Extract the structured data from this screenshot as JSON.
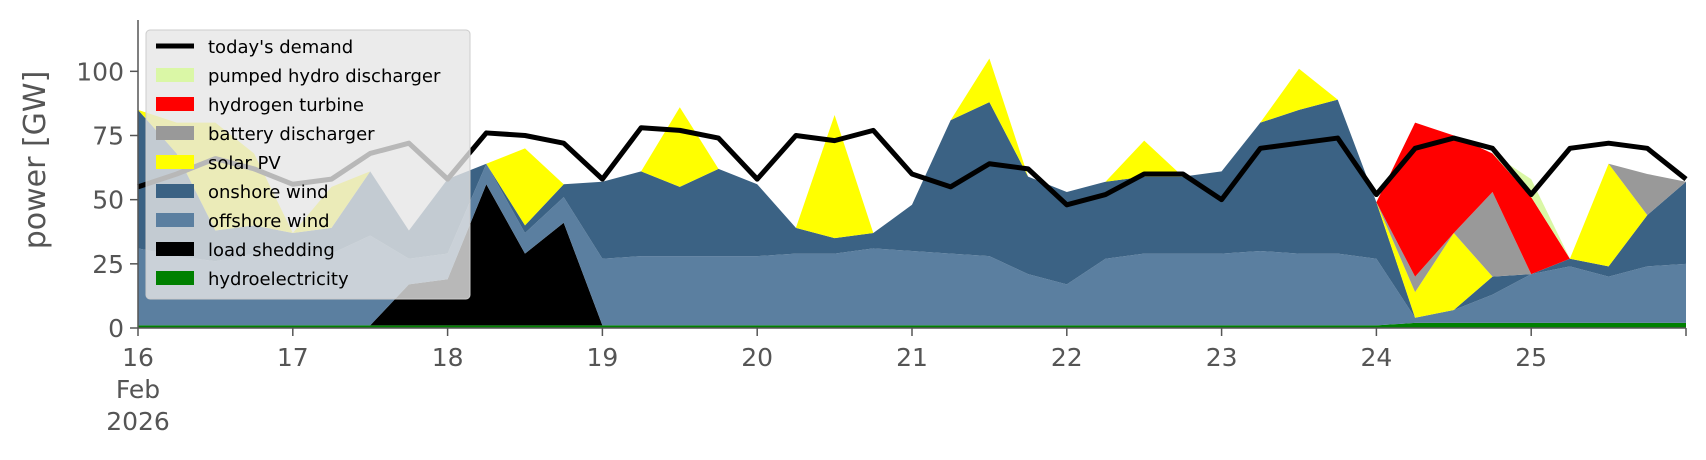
{
  "chart_data": {
    "type": "area",
    "ylabel": "power [GW]",
    "ylim": [
      0,
      120
    ],
    "xlim": [
      "2026-02-16T00:00",
      "2026-02-26T00:00"
    ],
    "yticks": [
      0,
      25,
      50,
      75,
      100
    ],
    "x_ticks": [
      {
        "label": "16",
        "sublabel": "Feb",
        "year": "2026"
      },
      {
        "label": "17"
      },
      {
        "label": "18"
      },
      {
        "label": "19"
      },
      {
        "label": "20"
      },
      {
        "label": "21"
      },
      {
        "label": "22"
      },
      {
        "label": "23"
      },
      {
        "label": "24"
      },
      {
        "label": "25"
      }
    ],
    "grid": false,
    "legend_position": "top-left",
    "stack_order": [
      "hydroelectricity",
      "load shedding",
      "offshore wind",
      "onshore wind",
      "solar PV",
      "battery discharger",
      "hydrogen turbine",
      "pumped hydro discharger"
    ],
    "x": [
      "2026-02-16T00:00",
      "2026-02-16T06:00",
      "2026-02-16T12:00",
      "2026-02-16T18:00",
      "2026-02-17T00:00",
      "2026-02-17T06:00",
      "2026-02-17T12:00",
      "2026-02-17T18:00",
      "2026-02-18T00:00",
      "2026-02-18T06:00",
      "2026-02-18T12:00",
      "2026-02-18T18:00",
      "2026-02-19T00:00",
      "2026-02-19T06:00",
      "2026-02-19T12:00",
      "2026-02-19T18:00",
      "2026-02-20T00:00",
      "2026-02-20T06:00",
      "2026-02-20T12:00",
      "2026-02-20T18:00",
      "2026-02-21T00:00",
      "2026-02-21T06:00",
      "2026-02-21T12:00",
      "2026-02-21T18:00",
      "2026-02-22T00:00",
      "2026-02-22T06:00",
      "2026-02-22T12:00",
      "2026-02-22T18:00",
      "2026-02-23T00:00",
      "2026-02-23T06:00",
      "2026-02-23T12:00",
      "2026-02-23T18:00",
      "2026-02-24T00:00",
      "2026-02-24T06:00",
      "2026-02-24T12:00",
      "2026-02-24T18:00",
      "2026-02-25T00:00",
      "2026-02-25T06:00",
      "2026-02-25T12:00",
      "2026-02-25T18:00",
      "2026-02-26T00:00"
    ],
    "series": [
      {
        "name": "hydroelectricity",
        "color": "#008000",
        "values": [
          1,
          1,
          1,
          1,
          1,
          1,
          1,
          1,
          1,
          1,
          1,
          1,
          1,
          1,
          1,
          1,
          1,
          1,
          1,
          1,
          1,
          1,
          1,
          1,
          1,
          1,
          1,
          1,
          1,
          1,
          1,
          1,
          1,
          2,
          2,
          2,
          2,
          2,
          2,
          2,
          2
        ]
      },
      {
        "name": "load shedding",
        "color": "#000000",
        "values": [
          0,
          0,
          0,
          0,
          0,
          0,
          0,
          16,
          18,
          55,
          28,
          40,
          0,
          0,
          0,
          0,
          0,
          0,
          0,
          0,
          0,
          0,
          0,
          0,
          0,
          0,
          0,
          0,
          0,
          0,
          0,
          0,
          0,
          0,
          0,
          0,
          0,
          0,
          0,
          0,
          0
        ]
      },
      {
        "name": "offshore wind",
        "color": "#5b7fa0",
        "values": [
          30,
          27,
          25,
          28,
          30,
          28,
          35,
          10,
          10,
          8,
          8,
          10,
          26,
          27,
          27,
          27,
          27,
          28,
          28,
          30,
          29,
          28,
          27,
          20,
          16,
          26,
          28,
          28,
          28,
          29,
          28,
          28,
          26,
          2,
          5,
          11,
          19,
          22,
          18,
          22,
          23
        ]
      },
      {
        "name": "onshore wind",
        "color": "#3b6284",
        "values": [
          54,
          40,
          12,
          11,
          6,
          10,
          25,
          11,
          29,
          0,
          3,
          5,
          30,
          33,
          27,
          34,
          28,
          10,
          6,
          6,
          18,
          52,
          60,
          38,
          36,
          30,
          30,
          30,
          32,
          50,
          56,
          60,
          22,
          0,
          0,
          7,
          0,
          3,
          4,
          20,
          32
        ]
      },
      {
        "name": "solar PV",
        "color": "#ffff00",
        "values": [
          0,
          12,
          42,
          28,
          0,
          16,
          0,
          0,
          0,
          0,
          30,
          0,
          0,
          0,
          31,
          0,
          0,
          0,
          48,
          0,
          0,
          0,
          17,
          0,
          0,
          0,
          14,
          0,
          0,
          0,
          16,
          0,
          0,
          10,
          30,
          0,
          0,
          0,
          40,
          0,
          0
        ]
      },
      {
        "name": "battery discharger",
        "color": "#999999",
        "values": [
          0,
          0,
          0,
          0,
          0,
          0,
          0,
          0,
          0,
          0,
          0,
          0,
          0,
          0,
          0,
          0,
          0,
          0,
          0,
          0,
          0,
          0,
          0,
          0,
          0,
          0,
          0,
          0,
          0,
          0,
          0,
          0,
          0,
          6,
          0,
          33,
          0,
          0,
          0,
          16,
          0
        ]
      },
      {
        "name": "hydrogen turbine",
        "color": "#ff0000",
        "values": [
          0,
          0,
          0,
          0,
          0,
          0,
          0,
          0,
          0,
          0,
          0,
          0,
          0,
          0,
          0,
          0,
          0,
          0,
          0,
          0,
          0,
          0,
          0,
          0,
          0,
          0,
          0,
          0,
          0,
          0,
          0,
          0,
          0,
          60,
          38,
          15,
          30,
          0,
          0,
          0,
          0
        ]
      },
      {
        "name": "pumped hydro discharger",
        "color": "#daf7a6",
        "values": [
          0,
          0,
          0,
          0,
          0,
          0,
          0,
          0,
          0,
          0,
          0,
          0,
          0,
          0,
          0,
          0,
          0,
          0,
          0,
          0,
          0,
          0,
          0,
          0,
          0,
          0,
          0,
          0,
          0,
          0,
          0,
          0,
          0,
          0,
          0,
          0,
          7,
          0,
          0,
          0,
          0
        ]
      }
    ],
    "demand": {
      "name": "today's demand",
      "color": "#000000",
      "values": [
        55,
        60,
        66,
        62,
        56,
        58,
        68,
        72,
        58,
        76,
        75,
        72,
        58,
        78,
        77,
        74,
        58,
        75,
        73,
        77,
        60,
        55,
        64,
        62,
        48,
        52,
        60,
        60,
        50,
        70,
        72,
        74,
        52,
        70,
        74,
        70,
        52,
        70,
        72,
        70,
        58
      ]
    },
    "legend": [
      {
        "label": "today's demand",
        "kind": "line",
        "color": "#000000"
      },
      {
        "label": "pumped hydro discharger",
        "kind": "patch",
        "color": "#daf7a6"
      },
      {
        "label": "hydrogen turbine",
        "kind": "patch",
        "color": "#ff0000"
      },
      {
        "label": "battery discharger",
        "kind": "patch",
        "color": "#999999"
      },
      {
        "label": "solar PV",
        "kind": "patch",
        "color": "#ffff00"
      },
      {
        "label": "onshore wind",
        "kind": "patch",
        "color": "#3b6284"
      },
      {
        "label": "offshore wind",
        "kind": "patch",
        "color": "#5b7fa0"
      },
      {
        "label": "load shedding",
        "kind": "patch",
        "color": "#000000"
      },
      {
        "label": "hydroelectricity",
        "kind": "patch",
        "color": "#008000"
      }
    ]
  }
}
